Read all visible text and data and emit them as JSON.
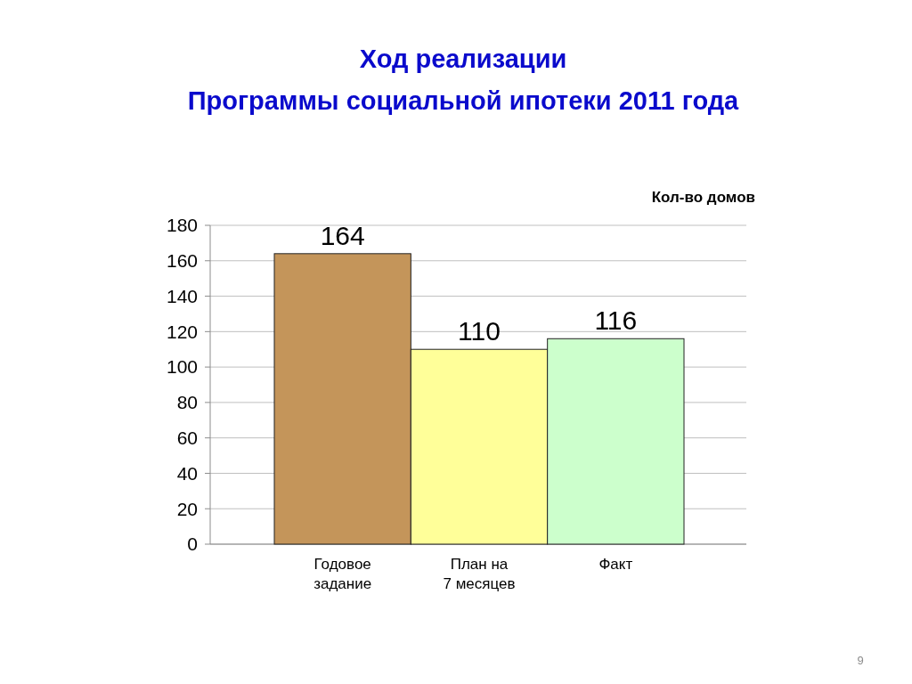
{
  "chart_data": {
    "type": "bar",
    "title": "Ход реализации",
    "subtitle": "Программы социальной ипотеки 2011 года",
    "ylabel": "Кол-во домов",
    "categories": [
      "Годовое задание",
      "План на 7 месяцев",
      "Факт"
    ],
    "values": [
      164,
      110,
      116
    ],
    "colors": [
      "#c4955a",
      "#ffff99",
      "#ccffcc"
    ],
    "ylim": [
      0,
      180
    ],
    "yticks": [
      0,
      20,
      40,
      60,
      80,
      100,
      120,
      140,
      160,
      180
    ],
    "grid": true,
    "data_labels": true,
    "annotations": [
      "9"
    ]
  }
}
